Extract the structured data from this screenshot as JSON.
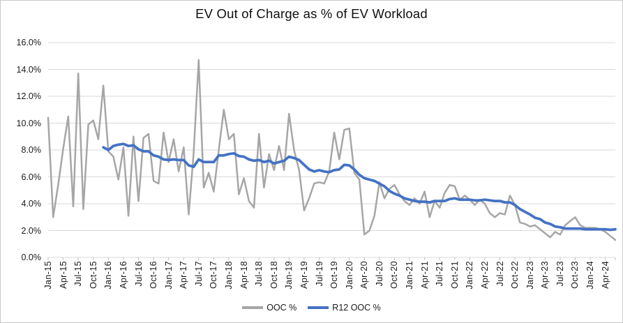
{
  "chart_data": {
    "type": "line",
    "title": "EV Out of Charge as % of EV Workload",
    "grid": true,
    "legend_position": "bottom",
    "x_axis": {
      "unit": "month",
      "start": "Jan-15",
      "end": "Jun-24",
      "tick_interval_months": 3,
      "tick_labels": [
        "Jan-15",
        "Apr-15",
        "Jul-15",
        "Oct-15",
        "Jan-16",
        "Apr-16",
        "Jul-16",
        "Oct-16",
        "Jan-17",
        "Apr-17",
        "Jul-17",
        "Oct-17",
        "Jan-18",
        "Apr-18",
        "Jul-18",
        "Oct-18",
        "Jan-19",
        "Apr-19",
        "Jul-19",
        "Oct-19",
        "Jan-20",
        "Apr-20",
        "Jul-20",
        "Oct-20",
        "Jan-21",
        "Apr-21",
        "Jul-21",
        "Oct-21",
        "Jan-22",
        "Apr-22",
        "Jul-22",
        "Oct-22",
        "Jan-23",
        "Apr-23",
        "Jul-23",
        "Oct-23",
        "Jan-24",
        "Apr-24"
      ]
    },
    "y_axis": {
      "min": 0,
      "max": 16,
      "tick_step": 2,
      "unit": "percent",
      "tick_labels": [
        "0.0%",
        "2.0%",
        "4.0%",
        "6.0%",
        "8.0%",
        "10.0%",
        "12.0%",
        "14.0%",
        "16.0%"
      ]
    },
    "colors": {
      "ooc": "#A6A6A6",
      "r12": "#4472C4",
      "gridline": "#D9D9D9",
      "axis_tick": "#BFBFBF",
      "text": "#1a1a1a"
    },
    "series": [
      {
        "name": "OOC %",
        "color": "#A6A6A6",
        "start": "Jan-15",
        "start_month_index": 0,
        "values_percent": [
          10.4,
          3.0,
          5.4,
          8.1,
          10.5,
          3.8,
          13.7,
          3.6,
          9.9,
          10.2,
          8.8,
          12.8,
          7.9,
          7.5,
          5.8,
          8.2,
          3.1,
          9.0,
          4.2,
          8.9,
          9.2,
          5.7,
          5.5,
          9.3,
          7.1,
          8.8,
          6.4,
          8.2,
          3.2,
          7.8,
          14.7,
          5.2,
          6.3,
          4.9,
          8.0,
          11.0,
          8.8,
          9.2,
          4.7,
          5.9,
          4.2,
          3.7,
          9.2,
          5.2,
          7.7,
          6.5,
          8.3,
          6.5,
          10.7,
          8.0,
          6.5,
          3.5,
          4.4,
          5.5,
          5.6,
          5.5,
          6.4,
          9.3,
          7.3,
          9.5,
          9.6,
          6.3,
          5.8,
          1.7,
          2.0,
          3.1,
          5.6,
          4.4,
          5.1,
          5.4,
          4.7,
          4.2,
          3.9,
          4.4,
          4.0,
          4.9,
          3.0,
          4.2,
          3.7,
          4.8,
          5.4,
          5.3,
          4.3,
          4.6,
          4.3,
          3.9,
          4.3,
          4.0,
          3.3,
          3.0,
          3.3,
          3.2,
          4.6,
          3.9,
          2.6,
          2.5,
          2.3,
          2.4,
          2.1,
          1.8,
          1.5,
          1.9,
          1.7,
          2.4,
          2.7,
          3.0,
          2.4,
          2.2,
          2.2,
          2.2,
          2.1,
          1.9,
          1.6,
          1.3
        ]
      },
      {
        "name": "R12 OOC %",
        "color": "#4472C4",
        "start": "Dec-15",
        "start_month_index": 11,
        "values_percent": [
          8.2,
          8.0,
          8.3,
          8.4,
          8.45,
          8.3,
          8.35,
          8.05,
          7.9,
          7.9,
          7.6,
          7.5,
          7.3,
          7.25,
          7.3,
          7.25,
          7.25,
          6.85,
          6.75,
          7.3,
          7.1,
          7.1,
          7.1,
          7.6,
          7.6,
          7.7,
          7.75,
          7.55,
          7.5,
          7.3,
          7.2,
          7.25,
          7.1,
          7.2,
          7.0,
          7.1,
          7.2,
          7.5,
          7.4,
          7.25,
          6.9,
          6.55,
          6.4,
          6.5,
          6.4,
          6.35,
          6.5,
          6.55,
          6.9,
          6.85,
          6.55,
          6.15,
          5.9,
          5.8,
          5.7,
          5.5,
          5.3,
          4.95,
          4.75,
          4.6,
          4.4,
          4.3,
          4.2,
          4.15,
          4.15,
          4.1,
          4.2,
          4.2,
          4.2,
          4.35,
          4.4,
          4.3,
          4.3,
          4.3,
          4.25,
          4.25,
          4.3,
          4.25,
          4.2,
          4.2,
          4.1,
          4.1,
          3.9,
          3.6,
          3.4,
          3.2,
          2.95,
          2.85,
          2.6,
          2.5,
          2.3,
          2.25,
          2.15,
          2.15,
          2.15,
          2.15,
          2.1,
          2.1,
          2.1,
          2.1,
          2.1,
          2.05,
          2.1
        ]
      }
    ]
  }
}
